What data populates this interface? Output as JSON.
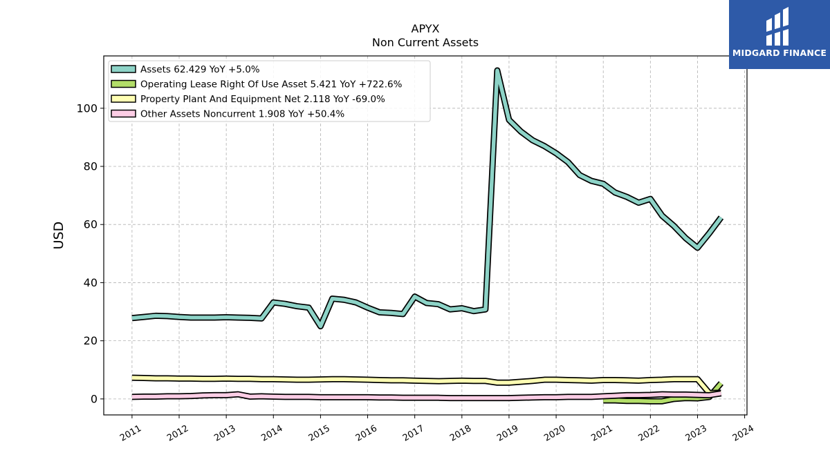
{
  "brand": {
    "name": "MIDGARD FINANCE",
    "bg_color": "#2e5aa8"
  },
  "chart_data": {
    "type": "line",
    "title": "APYX",
    "subtitle": "Non Current  Assets",
    "xlabel": "",
    "ylabel": "USD",
    "xlim": [
      2010.4,
      2024.05
    ],
    "ylim": [
      -5.5,
      118
    ],
    "y_ticks": [
      0,
      20,
      40,
      60,
      80,
      100
    ],
    "x_ticks": [
      "2011",
      "2012",
      "2013",
      "2014",
      "2015",
      "2016",
      "2017",
      "2018",
      "2019",
      "2020",
      "2021",
      "2022",
      "2023",
      "2024"
    ],
    "grid": true,
    "legend_position": "top-left",
    "series": [
      {
        "name": "Assets",
        "legend_label": "Assets  62.429 YoY +5.0%",
        "color": "#8dd3c7",
        "points": [
          [
            2011.0,
            27.8
          ],
          [
            2011.25,
            28.2
          ],
          [
            2011.5,
            28.6
          ],
          [
            2011.75,
            28.5
          ],
          [
            2012.0,
            28.2
          ],
          [
            2012.25,
            28.0
          ],
          [
            2012.5,
            28.0
          ],
          [
            2012.75,
            28.0
          ],
          [
            2013.0,
            28.1
          ],
          [
            2013.25,
            28.0
          ],
          [
            2013.5,
            27.9
          ],
          [
            2013.75,
            27.7
          ],
          [
            2014.0,
            33.2
          ],
          [
            2014.25,
            32.7
          ],
          [
            2014.5,
            31.9
          ],
          [
            2014.75,
            31.4
          ],
          [
            2015.0,
            25.0
          ],
          [
            2015.25,
            34.5
          ],
          [
            2015.5,
            34.1
          ],
          [
            2015.75,
            33.2
          ],
          [
            2016.0,
            31.4
          ],
          [
            2016.25,
            29.8
          ],
          [
            2016.5,
            29.6
          ],
          [
            2016.75,
            29.2
          ],
          [
            2017.0,
            35.2
          ],
          [
            2017.25,
            33.0
          ],
          [
            2017.5,
            32.6
          ],
          [
            2017.75,
            30.8
          ],
          [
            2018.0,
            31.2
          ],
          [
            2018.25,
            30.2
          ],
          [
            2018.5,
            30.8
          ],
          [
            2018.75,
            113.0
          ],
          [
            2019.0,
            96.0
          ],
          [
            2019.25,
            92.0
          ],
          [
            2019.5,
            89.0
          ],
          [
            2019.75,
            87.0
          ],
          [
            2020.0,
            84.5
          ],
          [
            2020.25,
            81.5
          ],
          [
            2020.5,
            77.0
          ],
          [
            2020.75,
            75.0
          ],
          [
            2021.0,
            74.0
          ],
          [
            2021.25,
            71.0
          ],
          [
            2021.5,
            69.5
          ],
          [
            2021.75,
            67.5
          ],
          [
            2022.0,
            68.8
          ],
          [
            2022.25,
            63.0
          ],
          [
            2022.5,
            59.5
          ],
          [
            2022.75,
            55.3
          ],
          [
            2023.0,
            52.0
          ],
          [
            2023.25,
            57.0
          ],
          [
            2023.5,
            62.429
          ]
        ]
      },
      {
        "name": "Operating Lease Right Of Use Asset",
        "legend_label": "Operating Lease Right Of Use Asset  5.421 YoY +722.6%",
        "color": "#b3de69",
        "points": [
          [
            2021.0,
            -0.5
          ],
          [
            2021.25,
            -0.5
          ],
          [
            2021.5,
            -0.7
          ],
          [
            2021.75,
            -0.7
          ],
          [
            2022.0,
            -0.8
          ],
          [
            2022.25,
            -0.8
          ],
          [
            2022.5,
            0.0
          ],
          [
            2022.75,
            0.3
          ],
          [
            2023.0,
            0.2
          ],
          [
            2023.25,
            0.66
          ],
          [
            2023.5,
            5.421
          ]
        ]
      },
      {
        "name": "Property Plant And Equipment Net",
        "legend_label": "Property Plant And Equipment Net  2.118 YoY -69.0%",
        "color": "#ffffb3",
        "points": [
          [
            2011.0,
            7.3
          ],
          [
            2011.25,
            7.2
          ],
          [
            2011.5,
            7.1
          ],
          [
            2011.75,
            7.1
          ],
          [
            2012.0,
            7.0
          ],
          [
            2012.25,
            7.0
          ],
          [
            2012.5,
            6.9
          ],
          [
            2012.75,
            6.9
          ],
          [
            2013.0,
            7.0
          ],
          [
            2013.25,
            6.9
          ],
          [
            2013.5,
            6.9
          ],
          [
            2013.75,
            6.8
          ],
          [
            2014.0,
            6.8
          ],
          [
            2014.25,
            6.7
          ],
          [
            2014.5,
            6.6
          ],
          [
            2014.75,
            6.6
          ],
          [
            2015.0,
            6.7
          ],
          [
            2015.25,
            6.8
          ],
          [
            2015.5,
            6.8
          ],
          [
            2015.75,
            6.7
          ],
          [
            2016.0,
            6.6
          ],
          [
            2016.25,
            6.5
          ],
          [
            2016.5,
            6.4
          ],
          [
            2016.75,
            6.4
          ],
          [
            2017.0,
            6.3
          ],
          [
            2017.25,
            6.2
          ],
          [
            2017.5,
            6.1
          ],
          [
            2017.75,
            6.2
          ],
          [
            2018.0,
            6.3
          ],
          [
            2018.25,
            6.2
          ],
          [
            2018.5,
            6.2
          ],
          [
            2018.75,
            5.6
          ],
          [
            2019.0,
            5.6
          ],
          [
            2019.25,
            5.9
          ],
          [
            2019.5,
            6.2
          ],
          [
            2019.75,
            6.6
          ],
          [
            2020.0,
            6.6
          ],
          [
            2020.25,
            6.5
          ],
          [
            2020.5,
            6.4
          ],
          [
            2020.75,
            6.3
          ],
          [
            2021.0,
            6.5
          ],
          [
            2021.25,
            6.5
          ],
          [
            2021.5,
            6.4
          ],
          [
            2021.75,
            6.3
          ],
          [
            2022.0,
            6.5
          ],
          [
            2022.25,
            6.6
          ],
          [
            2022.5,
            6.8
          ],
          [
            2022.75,
            6.8
          ],
          [
            2023.0,
            6.8
          ],
          [
            2023.25,
            2.0
          ],
          [
            2023.5,
            2.118
          ]
        ]
      },
      {
        "name": "Other Assets Noncurrent",
        "legend_label": "Other Assets Noncurrent  1.908 YoY +50.4%",
        "color": "#fccde5",
        "points": [
          [
            2011.0,
            0.7
          ],
          [
            2011.25,
            0.8
          ],
          [
            2011.5,
            0.8
          ],
          [
            2011.75,
            0.9
          ],
          [
            2012.0,
            0.9
          ],
          [
            2012.25,
            1.0
          ],
          [
            2012.5,
            1.2
          ],
          [
            2012.75,
            1.3
          ],
          [
            2013.0,
            1.3
          ],
          [
            2013.25,
            1.6
          ],
          [
            2013.5,
            0.8
          ],
          [
            2013.75,
            0.9
          ],
          [
            2014.0,
            0.8
          ],
          [
            2014.25,
            0.7
          ],
          [
            2014.5,
            0.7
          ],
          [
            2014.75,
            0.7
          ],
          [
            2015.0,
            0.6
          ],
          [
            2015.25,
            0.6
          ],
          [
            2015.5,
            0.6
          ],
          [
            2015.75,
            0.6
          ],
          [
            2016.0,
            0.6
          ],
          [
            2016.25,
            0.5
          ],
          [
            2016.5,
            0.5
          ],
          [
            2016.75,
            0.4
          ],
          [
            2017.0,
            0.4
          ],
          [
            2017.25,
            0.4
          ],
          [
            2017.5,
            0.4
          ],
          [
            2017.75,
            0.3
          ],
          [
            2018.0,
            0.3
          ],
          [
            2018.25,
            0.3
          ],
          [
            2018.5,
            0.3
          ],
          [
            2018.75,
            0.3
          ],
          [
            2019.0,
            0.3
          ],
          [
            2019.25,
            0.4
          ],
          [
            2019.5,
            0.5
          ],
          [
            2019.75,
            0.6
          ],
          [
            2020.0,
            0.6
          ],
          [
            2020.25,
            0.7
          ],
          [
            2020.5,
            0.7
          ],
          [
            2020.75,
            0.7
          ],
          [
            2021.0,
            0.9
          ],
          [
            2021.25,
            1.1
          ],
          [
            2021.5,
            1.3
          ],
          [
            2021.75,
            1.3
          ],
          [
            2022.0,
            1.4
          ],
          [
            2022.25,
            1.6
          ],
          [
            2022.5,
            1.5
          ],
          [
            2022.75,
            1.5
          ],
          [
            2023.0,
            1.4
          ],
          [
            2023.25,
            1.27
          ],
          [
            2023.5,
            1.908
          ]
        ]
      }
    ]
  }
}
